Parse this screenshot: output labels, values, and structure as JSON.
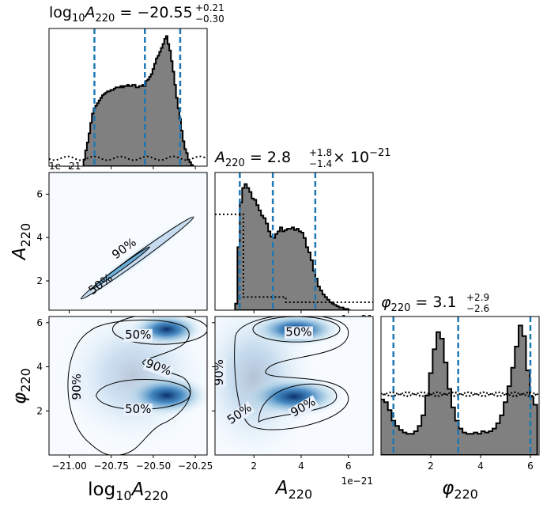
{
  "chart_data": [
    {
      "type": "histogram",
      "panel": "logA-marginal",
      "title_parts": {
        "name": "log",
        "sub1": "10",
        "var": "A",
        "sub2": "220",
        "eq": " = −20.55",
        "sup": "+0.21",
        "inf": "−0.30"
      },
      "xlim": [
        -21.12,
        -20.18
      ],
      "quantiles": [
        -20.85,
        -20.55,
        -20.34
      ],
      "prior_level": 0.06,
      "offset_text": "1e−21",
      "bins_x": [
        -20.91,
        -20.9,
        -20.89,
        -20.88,
        -20.87,
        -20.86,
        -20.85,
        -20.84,
        -20.83,
        -20.82,
        -20.81,
        -20.8,
        -20.79,
        -20.78,
        -20.77,
        -20.76,
        -20.75,
        -20.74,
        -20.73,
        -20.72,
        -20.71,
        -20.7,
        -20.69,
        -20.68,
        -20.67,
        -20.66,
        -20.65,
        -20.64,
        -20.63,
        -20.62,
        -20.61,
        -20.6,
        -20.59,
        -20.58,
        -20.57,
        -20.56,
        -20.55,
        -20.54,
        -20.53,
        -20.52,
        -20.51,
        -20.5,
        -20.49,
        -20.48,
        -20.47,
        -20.46,
        -20.45,
        -20.44,
        -20.43,
        -20.42,
        -20.41,
        -20.4,
        -20.39,
        -20.38,
        -20.37,
        -20.36,
        -20.35,
        -20.34,
        -20.33,
        -20.32,
        -20.31,
        -20.3,
        -20.29,
        -20.28,
        -20.27,
        -20.26
      ],
      "bins_y": [
        0.05,
        0.12,
        0.18,
        0.25,
        0.33,
        0.4,
        0.44,
        0.46,
        0.48,
        0.5,
        0.52,
        0.54,
        0.55,
        0.56,
        0.57,
        0.57,
        0.58,
        0.58,
        0.59,
        0.6,
        0.6,
        0.6,
        0.61,
        0.6,
        0.61,
        0.61,
        0.62,
        0.61,
        0.61,
        0.62,
        0.62,
        0.6,
        0.6,
        0.61,
        0.61,
        0.62,
        0.61,
        0.65,
        0.66,
        0.68,
        0.7,
        0.74,
        0.78,
        0.82,
        0.84,
        0.87,
        0.9,
        0.93,
        0.97,
        0.99,
        0.93,
        0.88,
        0.8,
        0.72,
        0.62,
        0.52,
        0.44,
        0.36,
        0.27,
        0.19,
        0.13,
        0.1,
        0.05,
        0.03,
        0.01,
        0.0
      ]
    },
    {
      "type": "histogram",
      "panel": "A-marginal",
      "title_parts": {
        "var": "A",
        "sub": "220",
        "eq": " = 2.8",
        "sup": "+1.8",
        "inf": "−1.4",
        "tail": " × 10",
        "exp": "−21"
      },
      "xlim": [
        0.35,
        7.05
      ],
      "quantiles": [
        1.4,
        2.8,
        4.6
      ],
      "prior_steps": [
        [
          0.35,
          0.73
        ],
        [
          1.55,
          0.73
        ],
        [
          1.55,
          0.1
        ],
        [
          3.35,
          0.1
        ],
        [
          3.35,
          0.06
        ],
        [
          7.05,
          0.06
        ]
      ],
      "offset_text": "1e−21",
      "bins_x": [
        1.25,
        1.35,
        1.45,
        1.55,
        1.65,
        1.75,
        1.85,
        1.95,
        2.05,
        2.15,
        2.25,
        2.35,
        2.45,
        2.55,
        2.65,
        2.75,
        2.85,
        2.95,
        3.05,
        3.15,
        3.25,
        3.35,
        3.45,
        3.55,
        3.65,
        3.75,
        3.85,
        3.95,
        4.05,
        4.15,
        4.25,
        4.35,
        4.45,
        4.55,
        4.65,
        4.75,
        4.85,
        4.95,
        5.05,
        5.15,
        5.25,
        5.35,
        5.45,
        5.55,
        5.65,
        5.75,
        5.85,
        5.95,
        6.05
      ],
      "bins_y": [
        0.05,
        0.48,
        0.82,
        0.93,
        0.96,
        0.93,
        0.9,
        0.85,
        0.84,
        0.8,
        0.76,
        0.72,
        0.7,
        0.66,
        0.6,
        0.56,
        0.55,
        0.58,
        0.6,
        0.63,
        0.6,
        0.61,
        0.62,
        0.62,
        0.63,
        0.61,
        0.62,
        0.6,
        0.59,
        0.55,
        0.48,
        0.44,
        0.38,
        0.3,
        0.24,
        0.18,
        0.15,
        0.12,
        0.1,
        0.08,
        0.06,
        0.05,
        0.04,
        0.03,
        0.02,
        0.02,
        0.01,
        0.01,
        0.0
      ]
    },
    {
      "type": "histogram",
      "panel": "phi-marginal",
      "title_parts": {
        "var": "φ",
        "sub": "220",
        "eq": " = 3.1",
        "sup": "+2.9",
        "inf": "−2.6"
      },
      "xlim": [
        0.0,
        6.35
      ],
      "quantiles": [
        0.5,
        3.1,
        6.0
      ],
      "prior_level": 0.46,
      "bins_x": [
        0.05,
        0.2,
        0.35,
        0.5,
        0.65,
        0.8,
        0.95,
        1.1,
        1.25,
        1.4,
        1.55,
        1.7,
        1.85,
        2.0,
        2.15,
        2.3,
        2.45,
        2.6,
        2.75,
        2.9,
        3.05,
        3.2,
        3.35,
        3.5,
        3.65,
        3.8,
        3.95,
        4.1,
        4.25,
        4.4,
        4.55,
        4.7,
        4.85,
        5.0,
        5.15,
        5.3,
        5.45,
        5.6,
        5.75,
        5.9,
        6.05,
        6.2
      ],
      "bins_y": [
        0.42,
        0.4,
        0.34,
        0.26,
        0.22,
        0.19,
        0.17,
        0.16,
        0.16,
        0.18,
        0.22,
        0.3,
        0.45,
        0.62,
        0.8,
        0.93,
        0.88,
        0.7,
        0.5,
        0.36,
        0.26,
        0.2,
        0.17,
        0.16,
        0.16,
        0.17,
        0.16,
        0.18,
        0.17,
        0.18,
        0.2,
        0.24,
        0.3,
        0.4,
        0.52,
        0.66,
        0.82,
        0.98,
        0.9,
        0.64,
        0.44,
        0.38
      ]
    },
    {
      "type": "contour",
      "panel": "logA-vs-A",
      "xlim": [
        -21.12,
        -20.18
      ],
      "ylim": [
        0.65,
        7.0
      ],
      "band": {
        "x_start": -20.93,
        "x_end": -20.26,
        "y_start": 1.17,
        "y_end": 4.95
      },
      "contour_labels": [
        {
          "text": "50%",
          "x": -20.8,
          "y": 1.7
        },
        {
          "text": "90%",
          "x": -20.66,
          "y": 3.35
        }
      ]
    },
    {
      "type": "contour",
      "panel": "logA-vs-phi",
      "xlim": [
        -21.12,
        -20.18
      ],
      "ylim": [
        0.0,
        6.28
      ],
      "modes": [
        {
          "x": -20.42,
          "y": 5.7
        },
        {
          "x": -20.42,
          "y": 2.7
        }
      ],
      "contour_labels": [
        {
          "text": "50%",
          "x": -20.59,
          "y": 5.28
        },
        {
          "text": "90%",
          "x": -20.47,
          "y": 3.8
        },
        {
          "text": "90%",
          "x": -20.95,
          "y": 2.95
        },
        {
          "text": "50%",
          "x": -20.59,
          "y": 1.9
        }
      ]
    },
    {
      "type": "contour",
      "panel": "A-vs-phi",
      "xlim": [
        0.35,
        7.05
      ],
      "ylim": [
        0.0,
        6.28
      ],
      "modes": [
        {
          "x": 3.75,
          "y": 5.7
        },
        {
          "x": 3.75,
          "y": 2.65
        }
      ],
      "contour_labels": [
        {
          "text": "50%",
          "x": 3.9,
          "y": 5.4
        },
        {
          "text": "90%",
          "x": 0.55,
          "y": 3.6
        },
        {
          "text": "50%",
          "x": 1.4,
          "y": 1.7
        },
        {
          "text": "90%",
          "x": 4.1,
          "y": 2.0
        }
      ]
    }
  ],
  "axes": {
    "logA": {
      "ticks": [
        -21.0,
        -20.75,
        -20.5,
        -20.25
      ],
      "tick_labels": [
        "−21.00",
        "−20.75",
        "−20.50",
        "−20.25"
      ],
      "label": {
        "name": "log",
        "sub1": "10",
        "var": "A",
        "sub2": "220"
      }
    },
    "A": {
      "ticks": [
        2,
        4,
        6
      ],
      "tick_labels": [
        "2",
        "4",
        "6"
      ],
      "offset_text": "1e−21",
      "label": {
        "var": "A",
        "sub": "220"
      }
    },
    "phi": {
      "ticks": [
        2,
        4,
        6
      ],
      "tick_labels": [
        "2",
        "4",
        "6"
      ],
      "label": {
        "var": "φ",
        "sub": "220"
      }
    }
  },
  "colors": {
    "quantile_line": "#1f77b4",
    "hist_fill": "#808080",
    "contour_cmap": "Blues"
  }
}
